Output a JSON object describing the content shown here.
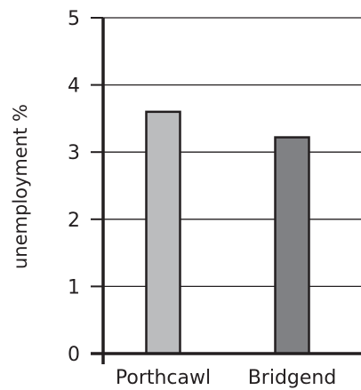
{
  "chart_data": {
    "type": "bar",
    "title": "",
    "xlabel": "",
    "ylabel": "unemployment %",
    "categories": [
      "Porthcawl",
      "Bridgend"
    ],
    "values": [
      3.6,
      3.22
    ],
    "bar_colors": [
      "#bbbcbe",
      "#808184"
    ],
    "ylim": [
      0,
      5
    ],
    "yticks": [
      0,
      1,
      2,
      3,
      4,
      5
    ],
    "grid": true,
    "legend": "none"
  }
}
